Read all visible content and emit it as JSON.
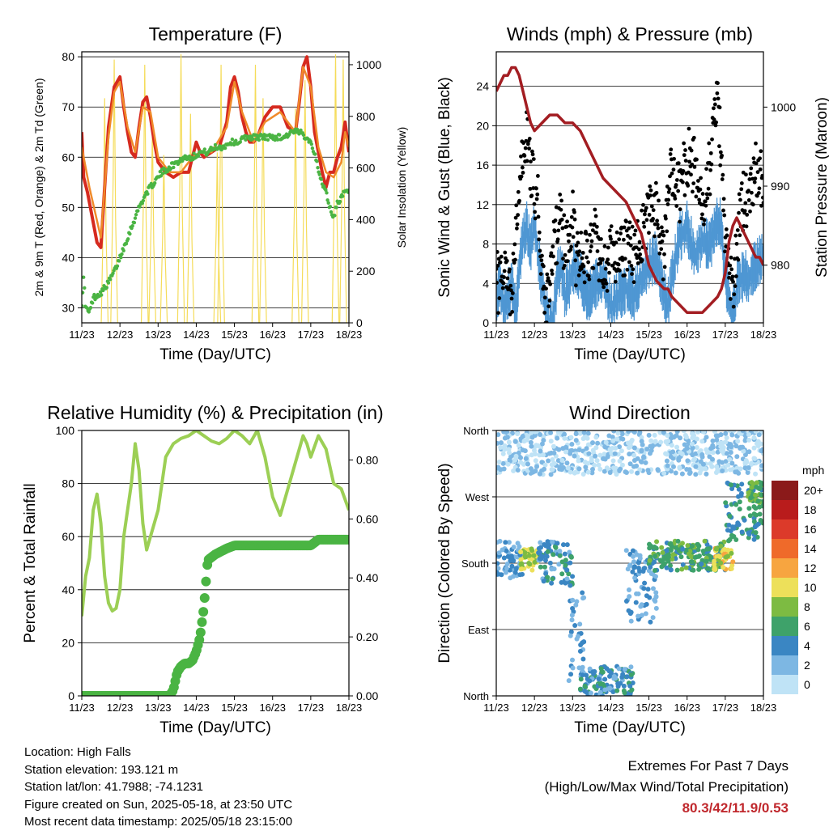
{
  "colors": {
    "temp2m": "#d62a1f",
    "temp9m": "#f08a2a",
    "dew": "#4ab443",
    "solar": "#f5dc5a",
    "gust": "#000000",
    "wind": "#4f97d3",
    "pressure": "#a31d22",
    "rh": "#9ccf55",
    "precip": "#4ab443",
    "extremes": "#c0282d"
  },
  "x_ticks": [
    "11/23",
    "12/23",
    "13/23",
    "14/23",
    "15/23",
    "16/23",
    "17/23",
    "18/23"
  ],
  "chart_data": [
    {
      "id": "temperature",
      "type": "line",
      "title": "Temperature (F)",
      "xlabel": "Time (Day/UTC)",
      "ylabel": "2m & 9m T (Red, Orange) & 2m Td (Green)",
      "ylabel_right": "Solar Insolation (Yellow)",
      "xlim": [
        0,
        7
      ],
      "ylim": [
        27,
        81
      ],
      "ylim_right": [
        0,
        1050
      ],
      "yticks": [
        "30",
        "40",
        "50",
        "60",
        "70",
        "80"
      ],
      "yticks_right": [
        "0",
        "200",
        "400",
        "600",
        "800",
        "1000"
      ],
      "grid": true,
      "series": [
        {
          "key": "t2m",
          "color_key": "temp2m",
          "x": [
            0,
            0.05,
            0.15,
            0.3,
            0.4,
            0.5,
            0.55,
            0.7,
            0.85,
            1.0,
            1.1,
            1.2,
            1.3,
            1.4,
            1.5,
            1.6,
            1.7,
            1.8,
            1.9,
            2.0,
            2.2,
            2.4,
            2.6,
            2.8,
            2.9,
            3.0,
            3.1,
            3.2,
            3.4,
            3.6,
            3.8,
            3.9,
            4.0,
            4.1,
            4.2,
            4.3,
            4.4,
            4.5,
            4.6,
            4.8,
            5.0,
            5.2,
            5.4,
            5.6,
            5.7,
            5.8,
            5.9,
            6.0,
            6.1,
            6.2,
            6.3,
            6.4,
            6.5,
            6.6,
            6.7,
            6.8,
            6.9,
            7.0
          ],
          "y": [
            65,
            56,
            53,
            47,
            43,
            42,
            48,
            66,
            74,
            76,
            70,
            65,
            61,
            60,
            66,
            71,
            72,
            68,
            63,
            59,
            57,
            56,
            57,
            57,
            60,
            63,
            61,
            60,
            61,
            62,
            67,
            74,
            76,
            73,
            68,
            65,
            63,
            63,
            64,
            68,
            70,
            70,
            66,
            65,
            71,
            78,
            80,
            74,
            65,
            61,
            57,
            54,
            57,
            57,
            60,
            62,
            67,
            61
          ]
        },
        {
          "key": "t9m",
          "color_key": "temp9m",
          "x": [
            0,
            0.1,
            0.2,
            0.35,
            0.5,
            0.7,
            0.85,
            1.0,
            1.2,
            1.4,
            1.6,
            1.8,
            2.0,
            2.3,
            2.6,
            2.9,
            3.1,
            3.4,
            3.8,
            4.0,
            4.2,
            4.5,
            4.8,
            5.2,
            5.6,
            5.8,
            6.0,
            6.2,
            6.4,
            6.6,
            6.8,
            6.9,
            7.0
          ],
          "y": [
            62,
            58,
            54,
            49,
            44,
            64,
            73,
            75,
            66,
            61,
            70,
            69,
            60,
            57,
            57,
            60,
            61,
            61,
            66,
            75,
            69,
            63,
            67,
            69,
            65,
            78,
            74,
            62,
            57,
            56,
            59,
            65,
            62
          ]
        },
        {
          "key": "td",
          "color_key": "dew",
          "x": [
            0,
            0.05,
            0.1,
            0.2,
            0.3,
            0.5,
            0.7,
            0.9,
            1.1,
            1.3,
            1.5,
            1.7,
            1.9,
            2.1,
            2.3,
            2.5,
            2.7,
            2.9,
            3.1,
            3.3,
            3.5,
            3.7,
            3.9,
            4.1,
            4.3,
            4.5,
            4.7,
            4.9,
            5.1,
            5.3,
            5.5,
            5.7,
            5.9,
            6.0,
            6.1,
            6.2,
            6.3,
            6.4,
            6.5,
            6.6,
            6.7,
            6.8,
            6.9,
            7.0
          ],
          "y": [
            31,
            36,
            30,
            29,
            32,
            33,
            35,
            38,
            42,
            46,
            50,
            53,
            55,
            57,
            58,
            59,
            60,
            60,
            61,
            61,
            62,
            62,
            63,
            63,
            64,
            64,
            64,
            64,
            64,
            64,
            65,
            65,
            64,
            63,
            61,
            57,
            55,
            53,
            50,
            48,
            51,
            52,
            53,
            53
          ]
        },
        {
          "key": "solar",
          "color_key": "solar",
          "axis": "right",
          "peaks": [
            [
              0.6,
              870
            ],
            [
              0.85,
              1020
            ],
            [
              1.65,
              1000
            ],
            [
              1.85,
              770
            ],
            [
              2.15,
              650
            ],
            [
              2.6,
              1040
            ],
            [
              2.85,
              810
            ],
            [
              3.55,
              660
            ],
            [
              3.65,
              1000
            ],
            [
              4.55,
              1000
            ],
            [
              4.75,
              870
            ],
            [
              5.6,
              830
            ],
            [
              5.85,
              940
            ],
            [
              6.65,
              1040
            ],
            [
              6.85,
              1020
            ]
          ]
        }
      ]
    },
    {
      "id": "winds",
      "type": "scatter",
      "title": "Winds (mph) & Pressure (mb)",
      "xlabel": "Time (Day/UTC)",
      "ylabel": "Sonic Wind & Gust (Blue, Black)",
      "ylabel_right": "Station Pressure (Maroon)",
      "xlim": [
        0,
        7
      ],
      "ylim": [
        0,
        27.5
      ],
      "ylim_right": [
        972.7,
        1007.0
      ],
      "yticks": [
        "0",
        "4",
        "8",
        "12",
        "16",
        "20",
        "24"
      ],
      "yticks_right": [
        "980",
        "990",
        "1000"
      ],
      "grid": true,
      "series": [
        {
          "key": "wind",
          "color_key": "wind",
          "x": [
            0,
            0.1,
            0.2,
            0.3,
            0.4,
            0.5,
            0.55,
            0.6,
            0.7,
            0.8,
            0.9,
            1.0,
            1.1,
            1.2,
            1.3,
            1.4,
            1.5,
            1.6,
            1.7,
            1.8,
            1.9,
            2.0,
            2.2,
            2.4,
            2.6,
            2.8,
            3.0,
            3.2,
            3.4,
            3.6,
            3.8,
            4.0,
            4.2,
            4.4,
            4.5,
            4.6,
            4.8,
            5.0,
            5.2,
            5.4,
            5.6,
            5.8,
            5.9,
            6.0,
            6.1,
            6.2,
            6.3,
            6.4,
            6.6,
            6.8,
            7.0
          ],
          "y": [
            3,
            4,
            2,
            3,
            4,
            2,
            3,
            6,
            9,
            10,
            8,
            11,
            7,
            4,
            2,
            0,
            1,
            5,
            6,
            3,
            4,
            6,
            5,
            3,
            4,
            5,
            2,
            3,
            4,
            3,
            5,
            6,
            7,
            3,
            2,
            5,
            9,
            10,
            7,
            9,
            8,
            11,
            10,
            5,
            3,
            1,
            4,
            5,
            5,
            6,
            7
          ]
        },
        {
          "key": "gust",
          "color_key": "gust",
          "x": [
            0,
            0.1,
            0.2,
            0.3,
            0.4,
            0.5,
            0.6,
            0.7,
            0.8,
            0.9,
            1.0,
            1.1,
            1.2,
            1.3,
            1.4,
            1.5,
            1.6,
            1.7,
            1.8,
            1.9,
            2.0,
            2.1,
            2.2,
            2.4,
            2.6,
            2.8,
            3.0,
            3.2,
            3.4,
            3.6,
            3.8,
            4.0,
            4.2,
            4.3,
            4.4,
            4.5,
            4.6,
            4.8,
            5.0,
            5.2,
            5.4,
            5.6,
            5.7,
            5.8,
            5.9,
            6.0,
            6.1,
            6.2,
            6.3,
            6.4,
            6.6,
            6.8,
            7.0
          ],
          "y": [
            5,
            3,
            6,
            4,
            2,
            8,
            13,
            17,
            19,
            16,
            14,
            12,
            5,
            2,
            3,
            8,
            9,
            11,
            7,
            9,
            11,
            6,
            8,
            6,
            9,
            5,
            7,
            6,
            8,
            7,
            9,
            11,
            12,
            8,
            6,
            14,
            15,
            13,
            17,
            16,
            11,
            16,
            19,
            24,
            15,
            9,
            5,
            3,
            7,
            12,
            13,
            16,
            14
          ]
        },
        {
          "key": "pressure",
          "color_key": "pressure",
          "axis": "right",
          "x": [
            0,
            0.1,
            0.2,
            0.3,
            0.4,
            0.5,
            0.6,
            0.7,
            0.8,
            0.9,
            1.0,
            1.2,
            1.4,
            1.6,
            1.8,
            2.0,
            2.2,
            2.4,
            2.6,
            2.8,
            3.0,
            3.2,
            3.4,
            3.6,
            3.8,
            4.0,
            4.2,
            4.4,
            4.5,
            4.6,
            4.8,
            5.0,
            5.2,
            5.4,
            5.6,
            5.8,
            5.9,
            6.0,
            6.1,
            6.2,
            6.3,
            6.4,
            6.5,
            6.6,
            6.7,
            6.8,
            6.9,
            7.0
          ],
          "y": [
            1002,
            1003,
            1004,
            1004,
            1005,
            1005,
            1004,
            1002,
            1000,
            998,
            997,
            998,
            999,
            999,
            998,
            998,
            997,
            995,
            993,
            991,
            990,
            989,
            988,
            986,
            984,
            980,
            978,
            977,
            977,
            976,
            975,
            974,
            974,
            974,
            975,
            976,
            977,
            979,
            983,
            985,
            986,
            985,
            984,
            983,
            982,
            981,
            981,
            980
          ]
        }
      ]
    },
    {
      "id": "humidity",
      "type": "line",
      "title": "Relative Humidity (%) & Precipitation (in)",
      "xlabel": "Time (Day/UTC)",
      "ylabel": "Percent & Total Rainfall",
      "ylim": [
        0,
        100
      ],
      "ylim_right": [
        0,
        0.9
      ],
      "xlim": [
        0,
        7
      ],
      "yticks": [
        "0",
        "20",
        "40",
        "60",
        "80",
        "100"
      ],
      "yticks_right": [
        "0.00",
        "0.20",
        "0.40",
        "0.60",
        "0.80"
      ],
      "grid": true,
      "series": [
        {
          "key": "rh",
          "color_key": "rh",
          "x": [
            0,
            0.1,
            0.2,
            0.3,
            0.4,
            0.5,
            0.6,
            0.7,
            0.8,
            0.9,
            1.0,
            1.1,
            1.2,
            1.3,
            1.4,
            1.5,
            1.6,
            1.7,
            1.8,
            1.9,
            2.0,
            2.2,
            2.4,
            2.6,
            2.8,
            3.0,
            3.2,
            3.4,
            3.6,
            3.8,
            4.0,
            4.2,
            4.4,
            4.6,
            4.8,
            5.0,
            5.2,
            5.4,
            5.6,
            5.8,
            5.9,
            6.0,
            6.2,
            6.4,
            6.6,
            6.8,
            7.0
          ],
          "y": [
            30,
            45,
            52,
            70,
            76,
            65,
            45,
            35,
            32,
            33,
            40,
            60,
            70,
            80,
            95,
            85,
            65,
            55,
            60,
            65,
            70,
            90,
            95,
            97,
            98,
            100,
            98,
            96,
            95,
            97,
            100,
            98,
            95,
            100,
            90,
            75,
            68,
            78,
            88,
            98,
            95,
            90,
            98,
            93,
            80,
            78,
            70
          ]
        },
        {
          "key": "precip",
          "color_key": "precip",
          "axis": "right",
          "x": [
            0,
            1.0,
            2.0,
            2.3,
            2.4,
            2.5,
            2.6,
            2.7,
            2.8,
            2.9,
            3.0,
            3.1,
            3.2,
            3.3,
            3.5,
            3.8,
            4.0,
            4.5,
            5.0,
            5.5,
            6.0,
            6.2,
            6.5,
            7.0
          ],
          "y": [
            0,
            0,
            0,
            0,
            0.02,
            0.08,
            0.1,
            0.11,
            0.11,
            0.12,
            0.15,
            0.2,
            0.3,
            0.46,
            0.48,
            0.5,
            0.51,
            0.51,
            0.51,
            0.51,
            0.51,
            0.53,
            0.53,
            0.53
          ]
        }
      ]
    },
    {
      "id": "wind_direction",
      "type": "scatter",
      "title": "Wind Direction",
      "xlabel": "Time (Day/UTC)",
      "ylabel": "Direction (Colored By Speed)",
      "xlim": [
        0,
        7
      ],
      "ylim": [
        0,
        360
      ],
      "yticks": [
        "North",
        "East",
        "South",
        "West",
        "North"
      ],
      "grid": true,
      "colorbar": {
        "title": "mph",
        "labels": [
          "20+",
          "18",
          "16",
          "14",
          "12",
          "10",
          "8",
          "6",
          "4",
          "2",
          "0"
        ],
        "colors": [
          "#8b1a1a",
          "#b91c1c",
          "#dc3a2a",
          "#ef6a2a",
          "#f7a540",
          "#ede05a",
          "#7dbb42",
          "#3ea26a",
          "#3a86c3",
          "#7db7e3",
          "#bfe3f6"
        ]
      },
      "clusters": [
        {
          "x": [
            0,
            0.7
          ],
          "y": [
            160,
            210
          ],
          "speed": 3
        },
        {
          "x": [
            0.6,
            1.1
          ],
          "y": [
            170,
            200
          ],
          "speed": 9
        },
        {
          "x": [
            1.1,
            2.0
          ],
          "y": [
            150,
            210
          ],
          "speed": 4
        },
        {
          "x": [
            1.9,
            2.3
          ],
          "y": [
            20,
            150
          ],
          "speed": 3
        },
        {
          "x": [
            2.2,
            3.6
          ],
          "y": [
            0,
            40
          ],
          "speed": 4
        },
        {
          "x": [
            3.4,
            4.2
          ],
          "y": [
            100,
            200
          ],
          "speed": 3
        },
        {
          "x": [
            4.0,
            6.0
          ],
          "y": [
            170,
            210
          ],
          "speed": 6
        },
        {
          "x": [
            5.7,
            6.2
          ],
          "y": [
            170,
            200
          ],
          "speed": 10
        },
        {
          "x": [
            6.0,
            7.0
          ],
          "y": [
            210,
            290
          ],
          "speed": 5
        },
        {
          "x": [
            6.6,
            7.0
          ],
          "y": [
            260,
            290
          ],
          "speed": 7
        },
        {
          "x": [
            0,
            7.0
          ],
          "y": [
            300,
            360
          ],
          "speed": 1
        }
      ]
    }
  ],
  "station": {
    "location": "Location: High Falls",
    "elevation": "Station elevation: 193.121 m",
    "latlon": "Station lat/lon: 41.7988; -74.1231",
    "created": "Figure created on Sun, 2025-05-18, at 23:50 UTC",
    "recent": "Most recent data timestamp: 2025/05/18 23:15:00"
  },
  "extremes": {
    "line1": "Extremes For Past 7 Days",
    "line2": "(High/Low/Max Wind/Total Precipitation)",
    "values": "80.3/42/11.9/0.53"
  }
}
